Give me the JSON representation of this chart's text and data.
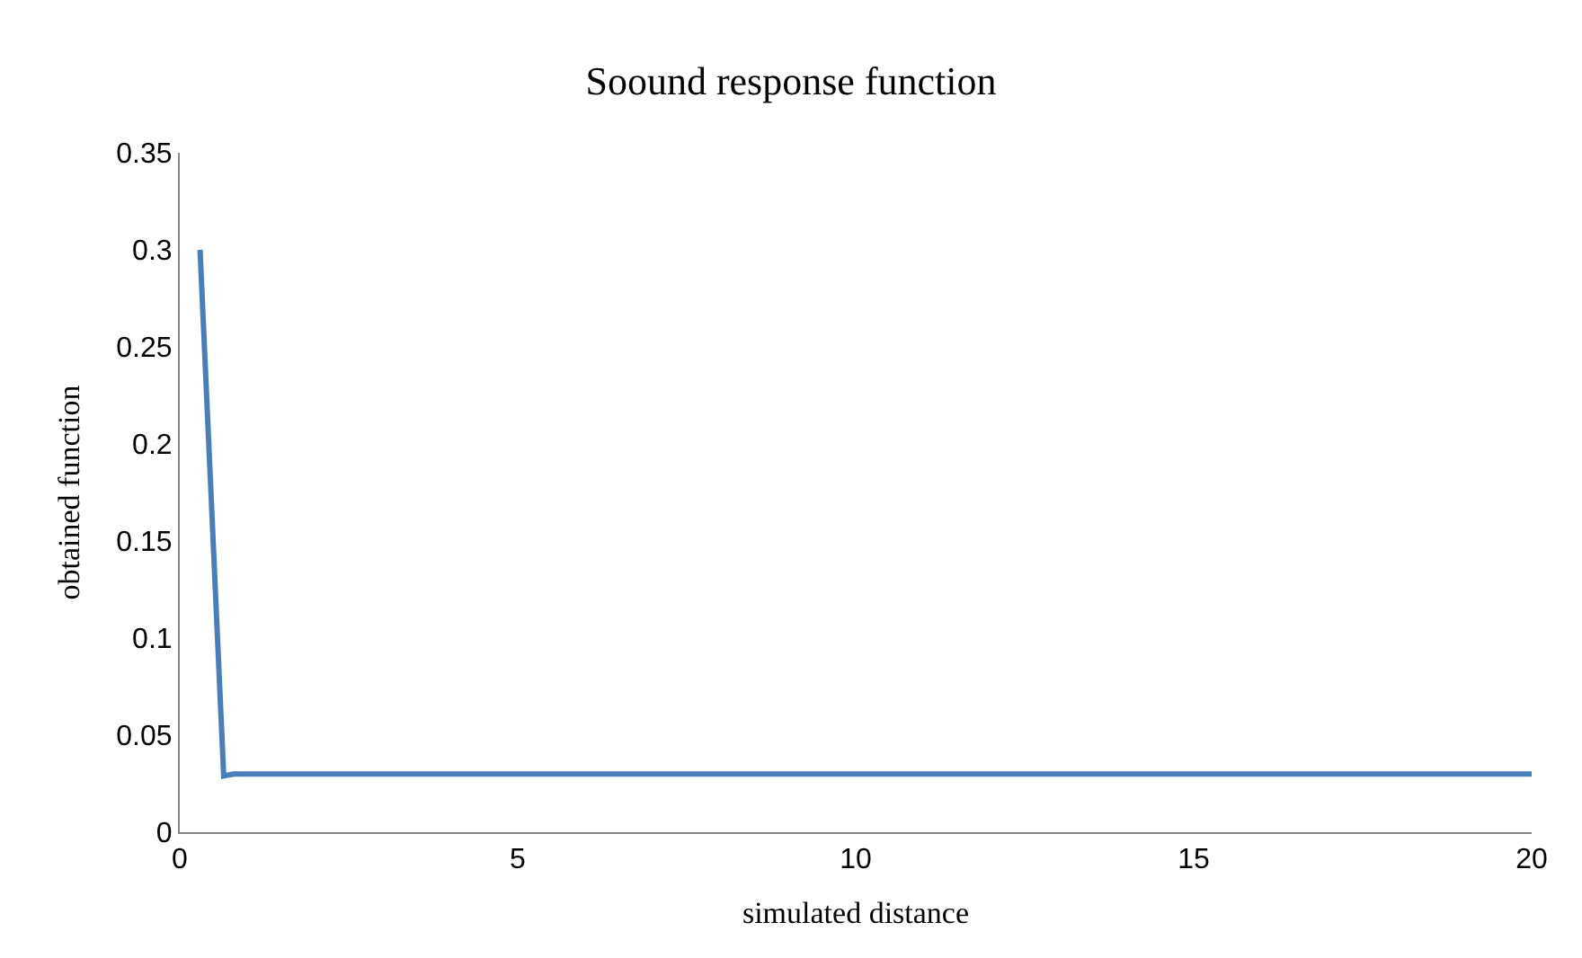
{
  "chart_data": {
    "type": "line",
    "title": "Soound response function",
    "xlabel": "simulated distance",
    "ylabel": "obtained function",
    "series": [
      {
        "color": "#4a7ebb",
        "x": [
          0.3,
          0.65,
          0.8,
          20
        ],
        "values": [
          0.3,
          0.029,
          0.03,
          0.03
        ]
      }
    ],
    "xlim": [
      0,
      20
    ],
    "xticks": [
      0,
      5,
      10,
      15,
      20
    ],
    "ylim": [
      0,
      0.35
    ],
    "yticks": [
      0,
      0.05,
      0.1,
      0.15,
      0.2,
      0.25,
      0.3,
      0.35
    ],
    "legend": false,
    "marker": "none",
    "line_style": "solid"
  }
}
